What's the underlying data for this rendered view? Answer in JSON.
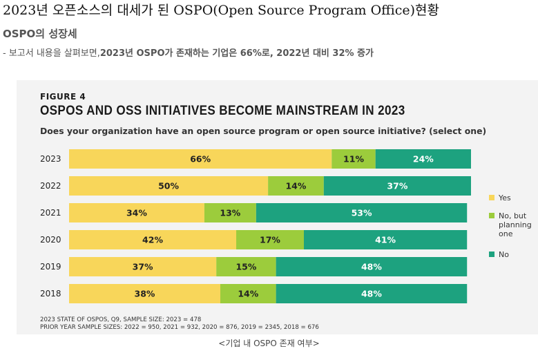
{
  "heading": {
    "title": "2023년 오픈소스의 대세가 된 OSPO(Open Source Program Office)현황",
    "subtitle": "OSPO의 성장세",
    "summary_prefix": "- 보고서 내용을 살펴보면,",
    "summary_bold": "2023년 OSPO가 존재하는 기업은 66%로, 2022년 대비 32% 증가"
  },
  "figure": {
    "label": "FIGURE 4",
    "footnote_1": "2023 STATE OF OSPOS, Q9, SAMPLE SIZE: 2023 = 478",
    "footnote_2": "PRIOR YEAR SAMPLE SIZES: 2022 = 950, 2021 = 932, 2020 = 876, 2019 = 2345, 2018 = 676"
  },
  "caption": "<기업 내 OSPO 존재 여부>",
  "chart_data": {
    "type": "bar",
    "orientation": "horizontal",
    "stacked": true,
    "percent_stacked": true,
    "title": "OSPOS AND OSS INITIATIVES BECOME MAINSTREAM IN 2023",
    "subtitle": "Does your organization have an open source program or open source initiative? (select one)",
    "categories": [
      "2023",
      "2022",
      "2021",
      "2020",
      "2019",
      "2018"
    ],
    "series": [
      {
        "name": "Yes",
        "color": "#f8d65a",
        "values": [
          66,
          50,
          34,
          42,
          37,
          38
        ]
      },
      {
        "name": "No, but planning one",
        "color": "#9ccc3c",
        "values": [
          11,
          14,
          13,
          17,
          15,
          14
        ]
      },
      {
        "name": "No",
        "color": "#1da27f",
        "values": [
          24,
          37,
          53,
          41,
          48,
          48
        ]
      }
    ],
    "value_suffix": "%",
    "legend": [
      "Yes",
      "No, but\nplanning\none",
      "No"
    ],
    "legend_position": "right",
    "xlim": [
      0,
      101
    ],
    "grid": false
  }
}
